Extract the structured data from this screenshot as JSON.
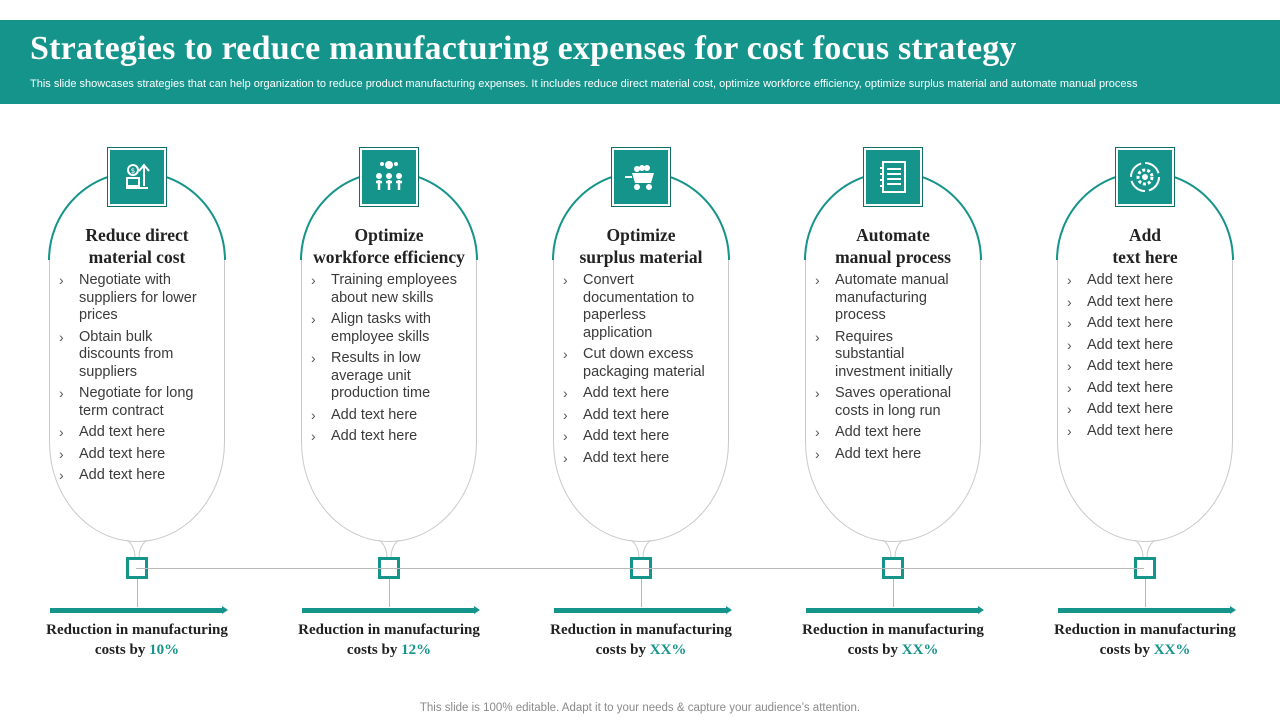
{
  "header": {
    "title": "Strategies to reduce manufacturing expenses for cost focus strategy",
    "subtitle": "This slide showcases strategies that can help organization to reduce product manufacturing expenses. It includes reduce direct material cost, optimize workforce efficiency, optimize surplus material and automate manual process"
  },
  "colors": {
    "accent": "#15948b",
    "header_bg": "#15948b",
    "text": "#222222"
  },
  "strategies": [
    {
      "icon": "money-growth-icon",
      "title_line1": "Reduce direct",
      "title_line2": "material cost",
      "bullets": [
        "Negotiate with suppliers for lower prices",
        "Obtain bulk discounts from suppliers",
        "Negotiate for long term contract",
        "Add text here",
        "Add text here",
        "Add text here"
      ],
      "reduction_label_line1": "Reduction in manufacturing",
      "reduction_label_line2": "costs by",
      "reduction_value": "10%"
    },
    {
      "icon": "team-gears-icon",
      "title_line1": "Optimize",
      "title_line2": "workforce efficiency",
      "bullets": [
        "Training employees about new skills",
        "Align tasks with employee skills",
        "Results in low average unit production time",
        "Add text here",
        "Add text here"
      ],
      "reduction_label_line1": "Reduction in manufacturing",
      "reduction_label_line2": "costs by",
      "reduction_value": "12%"
    },
    {
      "icon": "minecart-icon",
      "title_line1": "Optimize",
      "title_line2": "surplus material",
      "bullets": [
        "Convert documentation to paperless application",
        "Cut down excess packaging material",
        "Add text here",
        "Add text here",
        "Add text here",
        "Add text here"
      ],
      "reduction_label_line1": "Reduction in manufacturing",
      "reduction_label_line2": "costs by",
      "reduction_value": "XX%"
    },
    {
      "icon": "checklist-icon",
      "title_line1": "Automate",
      "title_line2": "manual process",
      "bullets": [
        "Automate manual manufacturing process",
        "Requires substantial investment initially",
        "Saves operational costs in long run",
        "Add text here",
        "Add text here"
      ],
      "reduction_label_line1": "Reduction in manufacturing",
      "reduction_label_line2": "costs by",
      "reduction_value": "XX%"
    },
    {
      "icon": "gear-cycle-icon",
      "title_line1": "Add",
      "title_line2": "text here",
      "bullets": [
        "Add text here",
        "Add text here",
        "Add text here",
        "Add text here",
        "Add text here",
        "Add text here",
        "Add text here",
        "Add text here"
      ],
      "reduction_label_line1": "Reduction in manufacturing",
      "reduction_label_line2": "costs by",
      "reduction_value": "XX%"
    }
  ],
  "footer": "This slide is 100% editable. Adapt it to your needs & capture your audience’s attention."
}
